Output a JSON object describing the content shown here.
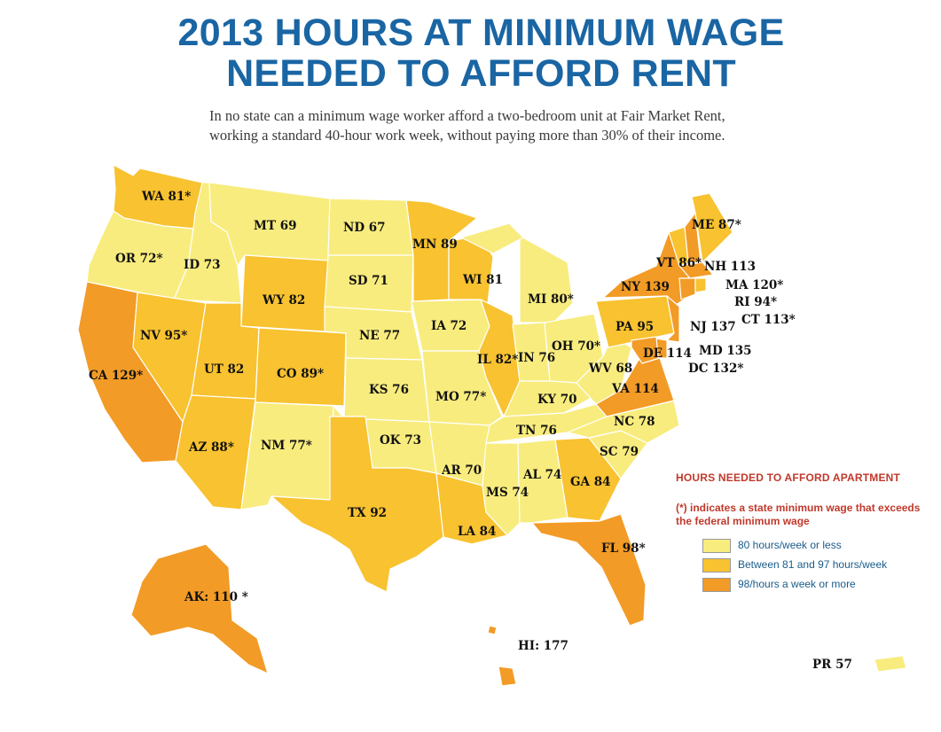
{
  "title": {
    "line1": "2013 HOURS AT MINIMUM WAGE",
    "line2": "NEEDED TO AFFORD RENT"
  },
  "subtitle": {
    "line1": "In no state can a minimum wage worker afford a two-bedroom unit at Fair Market Rent,",
    "line2": "working a standard 40-hour work week, without paying more than 30% of their income."
  },
  "colors": {
    "low": "#f8ec7e",
    "mid": "#f8c230",
    "high": "#f29b26",
    "title": "#1a65a3",
    "legend_heading": "#c0392b",
    "legend_text": "#1a5c8a"
  },
  "legend": {
    "heading": "HOURS NEEDED TO AFFORD APARTMENT",
    "note": "(*) indicates a state minimum wage that exceeds the federal minimum wage",
    "items": [
      {
        "label": "80 hours/week or less",
        "category": "low"
      },
      {
        "label": "Between 81 and 97 hours/week",
        "category": "mid"
      },
      {
        "label": "98/hours a week or more",
        "category": "high"
      }
    ]
  },
  "states": [
    {
      "id": "WA",
      "label": "WA 81*",
      "hours": 81,
      "category": "mid"
    },
    {
      "id": "OR",
      "label": "OR 72*",
      "hours": 72,
      "category": "low"
    },
    {
      "id": "CA",
      "label": "CA 129*",
      "hours": 129,
      "category": "high"
    },
    {
      "id": "ID",
      "label": "ID 73",
      "hours": 73,
      "category": "low"
    },
    {
      "id": "NV",
      "label": "NV 95*",
      "hours": 95,
      "category": "mid"
    },
    {
      "id": "MT",
      "label": "MT 69",
      "hours": 69,
      "category": "low"
    },
    {
      "id": "WY",
      "label": "WY 82",
      "hours": 82,
      "category": "mid"
    },
    {
      "id": "UT",
      "label": "UT 82",
      "hours": 82,
      "category": "mid"
    },
    {
      "id": "AZ",
      "label": "AZ 88*",
      "hours": 88,
      "category": "mid"
    },
    {
      "id": "CO",
      "label": "CO 89*",
      "hours": 89,
      "category": "mid"
    },
    {
      "id": "NM",
      "label": "NM 77*",
      "hours": 77,
      "category": "low"
    },
    {
      "id": "ND",
      "label": "ND 67",
      "hours": 67,
      "category": "low"
    },
    {
      "id": "SD",
      "label": "SD 71",
      "hours": 71,
      "category": "low"
    },
    {
      "id": "NE",
      "label": "NE 77",
      "hours": 77,
      "category": "low"
    },
    {
      "id": "KS",
      "label": "KS 76",
      "hours": 76,
      "category": "low"
    },
    {
      "id": "OK",
      "label": "OK 73",
      "hours": 73,
      "category": "low"
    },
    {
      "id": "TX",
      "label": "TX 92",
      "hours": 92,
      "category": "mid"
    },
    {
      "id": "MN",
      "label": "MN 89",
      "hours": 89,
      "category": "mid"
    },
    {
      "id": "IA",
      "label": "IA 72",
      "hours": 72,
      "category": "low"
    },
    {
      "id": "MO",
      "label": "MO 77*",
      "hours": 77,
      "category": "low"
    },
    {
      "id": "AR",
      "label": "AR 70",
      "hours": 70,
      "category": "low"
    },
    {
      "id": "LA",
      "label": "LA 84",
      "hours": 84,
      "category": "mid"
    },
    {
      "id": "WI",
      "label": "WI 81",
      "hours": 81,
      "category": "mid"
    },
    {
      "id": "IL",
      "label": "IL 82*",
      "hours": 82,
      "category": "mid"
    },
    {
      "id": "MI",
      "label": "MI 80*",
      "hours": 80,
      "category": "low"
    },
    {
      "id": "IN",
      "label": "IN 76",
      "hours": 76,
      "category": "low"
    },
    {
      "id": "OH",
      "label": "OH 70*",
      "hours": 70,
      "category": "low"
    },
    {
      "id": "KY",
      "label": "KY 70",
      "hours": 70,
      "category": "low"
    },
    {
      "id": "TN",
      "label": "TN 76",
      "hours": 76,
      "category": "low"
    },
    {
      "id": "MS",
      "label": "MS 74",
      "hours": 74,
      "category": "low"
    },
    {
      "id": "AL",
      "label": "AL 74",
      "hours": 74,
      "category": "low"
    },
    {
      "id": "GA",
      "label": "GA 84",
      "hours": 84,
      "category": "mid"
    },
    {
      "id": "FL",
      "label": "FL 98*",
      "hours": 98,
      "category": "high"
    },
    {
      "id": "SC",
      "label": "SC 79",
      "hours": 79,
      "category": "low"
    },
    {
      "id": "NC",
      "label": "NC 78",
      "hours": 78,
      "category": "low"
    },
    {
      "id": "VA",
      "label": "VA 114",
      "hours": 114,
      "category": "high"
    },
    {
      "id": "WV",
      "label": "WV 68",
      "hours": 68,
      "category": "low"
    },
    {
      "id": "PA",
      "label": "PA 95",
      "hours": 95,
      "category": "mid"
    },
    {
      "id": "NY",
      "label": "NY 139",
      "hours": 139,
      "category": "high"
    },
    {
      "id": "NJ",
      "label": "NJ 137",
      "hours": 137,
      "category": "high"
    },
    {
      "id": "DE",
      "label": "DE 114",
      "hours": 114,
      "category": "high"
    },
    {
      "id": "MD",
      "label": "MD 135",
      "hours": 135,
      "category": "high"
    },
    {
      "id": "DC",
      "label": "DC 132*",
      "hours": 132,
      "category": "high"
    },
    {
      "id": "CT",
      "label": "CT 113*",
      "hours": 113,
      "category": "high"
    },
    {
      "id": "RI",
      "label": "RI 94*",
      "hours": 94,
      "category": "mid"
    },
    {
      "id": "MA",
      "label": "MA 120*",
      "hours": 120,
      "category": "high"
    },
    {
      "id": "VT",
      "label": "VT 86*",
      "hours": 86,
      "category": "mid"
    },
    {
      "id": "NH",
      "label": "NH 113",
      "hours": 113,
      "category": "high"
    },
    {
      "id": "ME",
      "label": "ME 87*",
      "hours": 87,
      "category": "mid"
    },
    {
      "id": "AK",
      "label": "AK:  110 *",
      "hours": 110,
      "category": "high"
    },
    {
      "id": "HI",
      "label": "HI: 177",
      "hours": 177,
      "category": "high"
    },
    {
      "id": "PR",
      "label": "PR 57",
      "hours": 57,
      "category": "low"
    }
  ]
}
